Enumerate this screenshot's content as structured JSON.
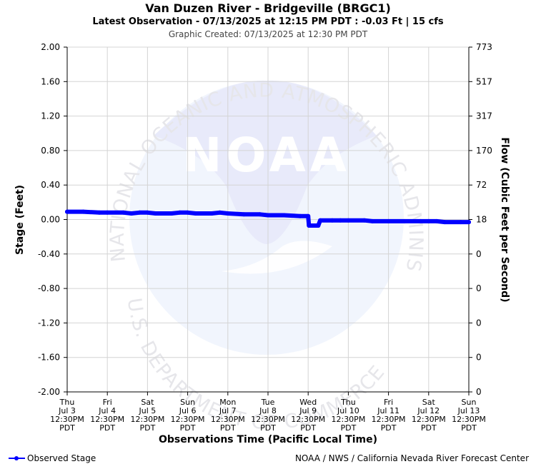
{
  "chart_data": {
    "type": "line",
    "title": "Van Duzen River - Bridgeville (BRGC1)",
    "subtitle": "Latest Observation - 07/13/2025 at 12:15 PM PDT : -0.03 Ft | 15 cfs",
    "created": "Graphic Created: 07/13/2025 at 12:30 PM PDT",
    "ylabel": "Stage (Feet)",
    "y2label": "Flow (Cubic Feet per Second)",
    "xlabel": "Observations Time (Pacific Local Time)",
    "ylim": [
      -2.0,
      2.0
    ],
    "xlim": [
      0,
      10
    ],
    "yticks": [
      {
        "value": 2.0,
        "label": "2.00",
        "flow": "773"
      },
      {
        "value": 1.6,
        "label": "1.60",
        "flow": "517"
      },
      {
        "value": 1.2,
        "label": "1.20",
        "flow": "317"
      },
      {
        "value": 0.8,
        "label": "0.80",
        "flow": "170"
      },
      {
        "value": 0.4,
        "label": "0.40",
        "flow": "72"
      },
      {
        "value": 0.0,
        "label": "0.00",
        "flow": "18"
      },
      {
        "value": -0.4,
        "label": "-0.40",
        "flow": "0"
      },
      {
        "value": -0.8,
        "label": "-0.80",
        "flow": "0"
      },
      {
        "value": -1.2,
        "label": "-1.20",
        "flow": "0"
      },
      {
        "value": -1.6,
        "label": "-1.60",
        "flow": "0"
      },
      {
        "value": -2.0,
        "label": "-2.00",
        "flow": "0"
      }
    ],
    "xticks": [
      {
        "value": 0,
        "lines": [
          "Thu",
          "Jul 3",
          "12:30PM",
          "PDT"
        ]
      },
      {
        "value": 1,
        "lines": [
          "Fri",
          "Jul 4",
          "12:30PM",
          "PDT"
        ]
      },
      {
        "value": 2,
        "lines": [
          "Sat",
          "Jul 5",
          "12:30PM",
          "PDT"
        ]
      },
      {
        "value": 3,
        "lines": [
          "Sun",
          "Jul 6",
          "12:30PM",
          "PDT"
        ]
      },
      {
        "value": 4,
        "lines": [
          "Mon",
          "Jul 7",
          "12:30PM",
          "PDT"
        ]
      },
      {
        "value": 5,
        "lines": [
          "Tue",
          "Jul 8",
          "12:30PM",
          "PDT"
        ]
      },
      {
        "value": 6,
        "lines": [
          "Wed",
          "Jul 9",
          "12:30PM",
          "PDT"
        ]
      },
      {
        "value": 7,
        "lines": [
          "Thu",
          "Jul 10",
          "12:30PM",
          "PDT"
        ]
      },
      {
        "value": 8,
        "lines": [
          "Fri",
          "Jul 11",
          "12:30PM",
          "PDT"
        ]
      },
      {
        "value": 9,
        "lines": [
          "Sat",
          "Jul 12",
          "12:30PM",
          "PDT"
        ]
      },
      {
        "value": 10,
        "lines": [
          "Sun",
          "Jul 13",
          "12:30PM",
          "PDT"
        ]
      }
    ],
    "grid": true,
    "legend": "bottom-left",
    "series": [
      {
        "name": "Observed Stage",
        "color": "#0000ff",
        "points": [
          [
            0.0,
            0.09
          ],
          [
            0.4,
            0.09
          ],
          [
            0.8,
            0.08
          ],
          [
            1.0,
            0.08
          ],
          [
            1.4,
            0.08
          ],
          [
            1.6,
            0.07
          ],
          [
            1.8,
            0.08
          ],
          [
            2.0,
            0.08
          ],
          [
            2.2,
            0.07
          ],
          [
            2.6,
            0.07
          ],
          [
            2.8,
            0.08
          ],
          [
            3.0,
            0.08
          ],
          [
            3.2,
            0.07
          ],
          [
            3.6,
            0.07
          ],
          [
            3.8,
            0.08
          ],
          [
            4.0,
            0.07
          ],
          [
            4.4,
            0.06
          ],
          [
            4.8,
            0.06
          ],
          [
            5.0,
            0.05
          ],
          [
            5.4,
            0.05
          ],
          [
            5.8,
            0.04
          ],
          [
            6.0,
            0.04
          ],
          [
            6.02,
            -0.07
          ],
          [
            6.25,
            -0.07
          ],
          [
            6.3,
            -0.01
          ],
          [
            6.6,
            -0.01
          ],
          [
            6.8,
            -0.01
          ],
          [
            7.0,
            -0.01
          ],
          [
            7.4,
            -0.01
          ],
          [
            7.6,
            -0.02
          ],
          [
            8.0,
            -0.02
          ],
          [
            8.4,
            -0.02
          ],
          [
            8.8,
            -0.02
          ],
          [
            9.0,
            -0.02
          ],
          [
            9.2,
            -0.02
          ],
          [
            9.4,
            -0.03
          ],
          [
            9.8,
            -0.03
          ],
          [
            10.0,
            -0.03
          ]
        ]
      }
    ],
    "footer": "NOAA / NWS / California Nevada River Forecast Center"
  },
  "watermark": {
    "logo_text": "NOAA",
    "ring_top": "NATIONAL OCEANIC AND ATMOSPHERIC ADMINISTRATION",
    "ring_bottom": "U.S. DEPARTMENT OF COMMERCE"
  }
}
